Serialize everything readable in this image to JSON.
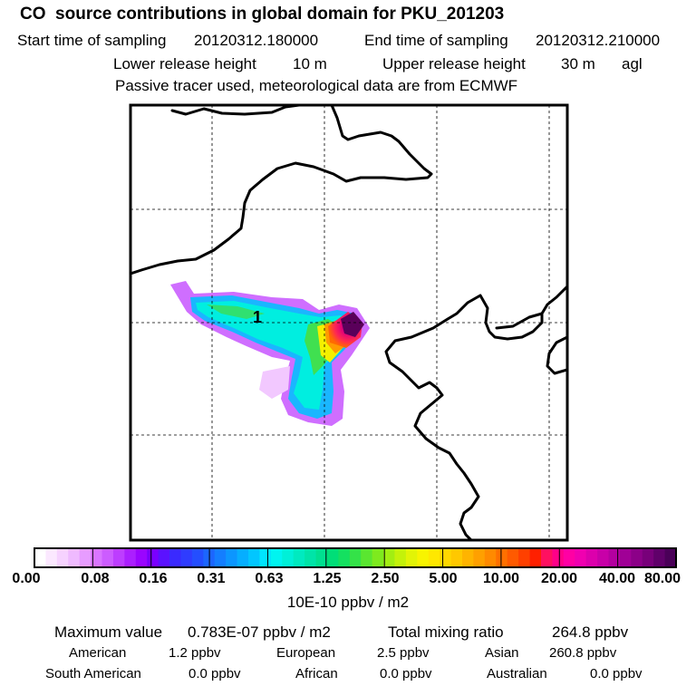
{
  "header": {
    "title": "CO  source contributions in global domain for PKU_201203",
    "start_label": "Start time of sampling",
    "start_value": "20120312.180000",
    "end_label": "End time of sampling",
    "end_value": "20120312.210000",
    "lower_label": "Lower release height",
    "lower_value": "10 m",
    "upper_label": "Upper release height",
    "upper_value": "30 m",
    "agl": "agl",
    "tracer_note": "Passive tracer used, meteorological data are from ECMWF"
  },
  "map": {
    "receptor_marker": "1",
    "colors": {
      "coast": "#000000",
      "grid": "#000000"
    }
  },
  "colorbar": {
    "labels": [
      "0.00",
      "0.08",
      "0.16",
      "0.31",
      "0.63",
      "1.25",
      "2.50",
      "5.00",
      "10.00",
      "20.00",
      "40.00",
      "80.00"
    ],
    "colors": [
      "#ffffff",
      "#fbe8ff",
      "#f6d2ff",
      "#efbaff",
      "#e79cff",
      "#d975ff",
      "#cc5cff",
      "#bd3dff",
      "#ab1fff",
      "#9a05ff",
      "#7a00ff",
      "#5b12ff",
      "#3a2aff",
      "#2f3cff",
      "#244eff",
      "#1c66ff",
      "#147eff",
      "#0c96ff",
      "#06aeff",
      "#02c6ff",
      "#00e4ff",
      "#00f4f0",
      "#00f0d8",
      "#00eac0",
      "#00e4a8",
      "#00e090",
      "#00de78",
      "#14e060",
      "#34e248",
      "#5ae630",
      "#7eea1e",
      "#a2ee12",
      "#c4f20a",
      "#e2f406",
      "#f8f400",
      "#ffe800",
      "#ffd800",
      "#ffc800",
      "#ffb400",
      "#ffa000",
      "#ff8a00",
      "#ff7000",
      "#ff5a00",
      "#ff4000",
      "#ff2000",
      "#ff1060",
      "#ff0088",
      "#ff00a4",
      "#f000b0",
      "#dc00ac",
      "#c800a8",
      "#b400a0",
      "#a00096",
      "#8c0088",
      "#78007a",
      "#60006a",
      "#4a0058"
    ],
    "unit": "10E-10 ppbv / m2"
  },
  "summary": {
    "max_label": "Maximum value",
    "max_value": "0.783E-07 ppbv / m2",
    "total_label": "Total mixing ratio",
    "total_value": "264.8 ppbv",
    "regions": [
      {
        "name": "American",
        "value": "1.2 ppbv"
      },
      {
        "name": "European",
        "value": "2.5 ppbv"
      },
      {
        "name": "Asian",
        "value": "260.8 ppbv"
      },
      {
        "name": "South American",
        "value": "0.0 ppbv"
      },
      {
        "name": "African",
        "value": "0.0 ppbv"
      },
      {
        "name": "Australian",
        "value": "0.0 ppbv"
      }
    ]
  }
}
